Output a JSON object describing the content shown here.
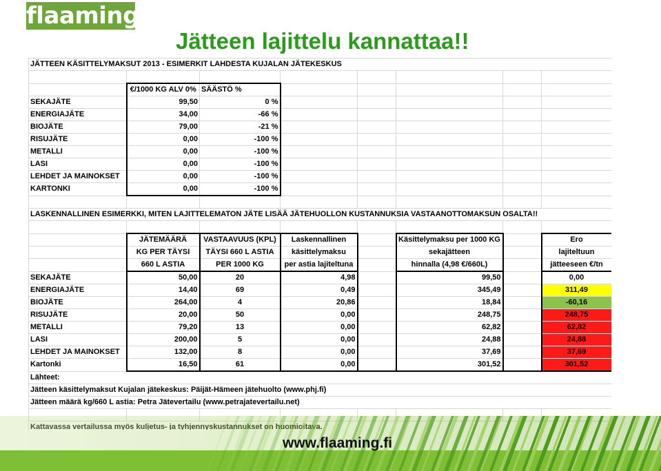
{
  "logo": {
    "text": "flaaming"
  },
  "title": "Jätteen lajittelu kannattaa!!",
  "footer": {
    "url": "www.flaaming.fi"
  },
  "sheet": {
    "heading1": "JÄTTEEN KÄSITTELYMAKSUT 2013 - ESIMERKIT LAHDESTA KUJALAN JÄTEKESKUS",
    "t1_headers": [
      "€/1000 KG ALV 0%",
      "SÄÄSTÖ %"
    ],
    "t1_rows": [
      {
        "name": "SEKAJÄTE",
        "price": "99,50",
        "saving": "0 %"
      },
      {
        "name": "ENERGIAJÄTE",
        "price": "34,00",
        "saving": "-66 %"
      },
      {
        "name": "BIOJÄTE",
        "price": "79,00",
        "saving": "-21 %"
      },
      {
        "name": "RISUJÄTE",
        "price": "0,00",
        "saving": "-100 %"
      },
      {
        "name": "METALLI",
        "price": "0,00",
        "saving": "-100 %"
      },
      {
        "name": "LASI",
        "price": "0,00",
        "saving": "-100 %"
      },
      {
        "name": "LEHDET JA MAINOKSET",
        "price": "0,00",
        "saving": "-100 %"
      },
      {
        "name": "KARTONKI",
        "price": "0,00",
        "saving": "-100 %"
      }
    ],
    "heading2": "LASKENNALLINEN ESIMERKKI, MITEN LAJITTELEMATON JÄTE LISÄÄ JÄTEHUOLLON KUSTANNUKSIA VASTAANOTTOMAKSUN OSALTA!!",
    "t2_headers": {
      "col1": [
        "JÄTEMÄÄRÄ",
        "KG PER TÄYSI",
        "660 L ASTIA"
      ],
      "col2": [
        "VASTAAVUUS (KPL)",
        "TÄYSI 660 L ASTIA",
        "PER 1000 KG"
      ],
      "col3": [
        "Laskennallinen",
        "käsittelymaksu",
        "per astia lajiteltuna"
      ],
      "col4": [
        "Käsittelymaksu per 1000 KG",
        "sekajätteen",
        "hinnalla (4,98 €/660L)"
      ],
      "col5": [
        "Ero",
        "lajiteltuun",
        "jätteeseen €/tn"
      ]
    },
    "t2_rows": [
      {
        "name": "SEKAJÄTE",
        "kg": "50,00",
        "count": "20",
        "calc": "4,98",
        "mixed": "99,50",
        "diff": "0,00",
        "hl": ""
      },
      {
        "name": "ENERGIAJÄTE",
        "kg": "14,40",
        "count": "69",
        "calc": "0,49",
        "mixed": "345,49",
        "diff": "311,49",
        "hl": "yellow"
      },
      {
        "name": "BIOJÄTE",
        "kg": "264,00",
        "count": "4",
        "calc": "20,86",
        "mixed": "18,84",
        "diff": "-60,16",
        "hl": "greenc"
      },
      {
        "name": "RISUJÄTE",
        "kg": "20,00",
        "count": "50",
        "calc": "0,00",
        "mixed": "248,75",
        "diff": "248,75",
        "hl": "red"
      },
      {
        "name": "METALLI",
        "kg": "79,20",
        "count": "13",
        "calc": "0,00",
        "mixed": "62,82",
        "diff": "62,82",
        "hl": "red"
      },
      {
        "name": "LASI",
        "kg": "200,00",
        "count": "5",
        "calc": "0,00",
        "mixed": "24,88",
        "diff": "24,88",
        "hl": "red"
      },
      {
        "name": "LEHDET JA MAINOKSET",
        "kg": "132,00",
        "count": "8",
        "calc": "0,00",
        "mixed": "37,69",
        "diff": "37,69",
        "hl": "red"
      },
      {
        "name": "Kartonki",
        "kg": "16,50",
        "count": "61",
        "calc": "0,00",
        "mixed": "301,52",
        "diff": "301,52",
        "hl": "red"
      }
    ],
    "sources_title": "Lähteet:",
    "source1": "Jätteen käsittelymaksut Kujalan jätekeskus: Päijät-Hämeen jätehuolto (www.phj.fi)",
    "source2": "Jätteen määrä kg/660 L astia: Petra Jätevertailu (www.petrajatevertailu.net)",
    "note": "Kattavassa vertailussa myös kuljetus- ja tyhjennyskustannukset on huomioitava."
  },
  "colors": {
    "brand_green": "#6fa63a",
    "title_green": "#2d9a1e",
    "yellow": "#ffff00",
    "green_cell": "#8cc34a",
    "red": "#ff1a1a"
  }
}
